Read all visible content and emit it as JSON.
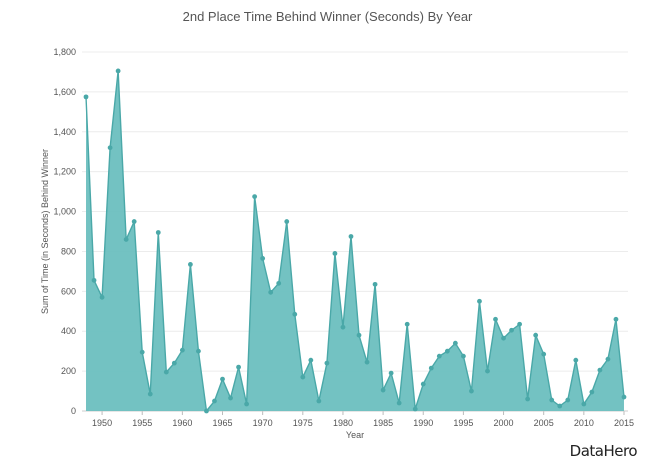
{
  "brand": "DataHero",
  "chart_data": {
    "type": "area",
    "title": "2nd Place Time Behind Winner (Seconds) By Year",
    "xlabel": "Year",
    "ylabel": "Sum of Time (in Seconds) Behind Winner",
    "xlim": [
      1947.5,
      2015.5
    ],
    "ylim": [
      0,
      1800
    ],
    "x_ticks": [
      "1950",
      "1955",
      "1960",
      "1965",
      "1970",
      "1975",
      "1980",
      "1985",
      "1990",
      "1995",
      "2000",
      "2005",
      "2010",
      "2015"
    ],
    "y_ticks": [
      "0",
      "200",
      "400",
      "600",
      "800",
      "1,000",
      "1,200",
      "1,400",
      "1,600",
      "1,800"
    ],
    "grid": true,
    "color": "#4aa8a8",
    "fill_color": "#6cbfbf",
    "x": [
      1948,
      1949,
      1950,
      1951,
      1952,
      1953,
      1954,
      1955,
      1956,
      1957,
      1958,
      1959,
      1960,
      1961,
      1962,
      1963,
      1964,
      1965,
      1966,
      1967,
      1968,
      1969,
      1970,
      1971,
      1972,
      1973,
      1974,
      1975,
      1976,
      1977,
      1978,
      1979,
      1980,
      1981,
      1982,
      1983,
      1984,
      1985,
      1986,
      1987,
      1988,
      1989,
      1990,
      1991,
      1992,
      1993,
      1994,
      1995,
      1996,
      1997,
      1998,
      1999,
      2000,
      2001,
      2002,
      2003,
      2004,
      2005,
      2006,
      2007,
      2008,
      2009,
      2010,
      2011,
      2012,
      2013,
      2014,
      2015
    ],
    "values": [
      1575,
      655,
      570,
      1320,
      1705,
      860,
      950,
      295,
      85,
      895,
      195,
      240,
      305,
      735,
      300,
      0,
      50,
      160,
      65,
      220,
      35,
      1075,
      765,
      595,
      640,
      950,
      485,
      170,
      255,
      50,
      240,
      790,
      420,
      875,
      380,
      245,
      635,
      105,
      190,
      40,
      435,
      10,
      135,
      215,
      275,
      300,
      340,
      275,
      100,
      550,
      200,
      460,
      365,
      405,
      435,
      60,
      380,
      285,
      55,
      25,
      55,
      255,
      35,
      95,
      205,
      260,
      460,
      70
    ]
  }
}
